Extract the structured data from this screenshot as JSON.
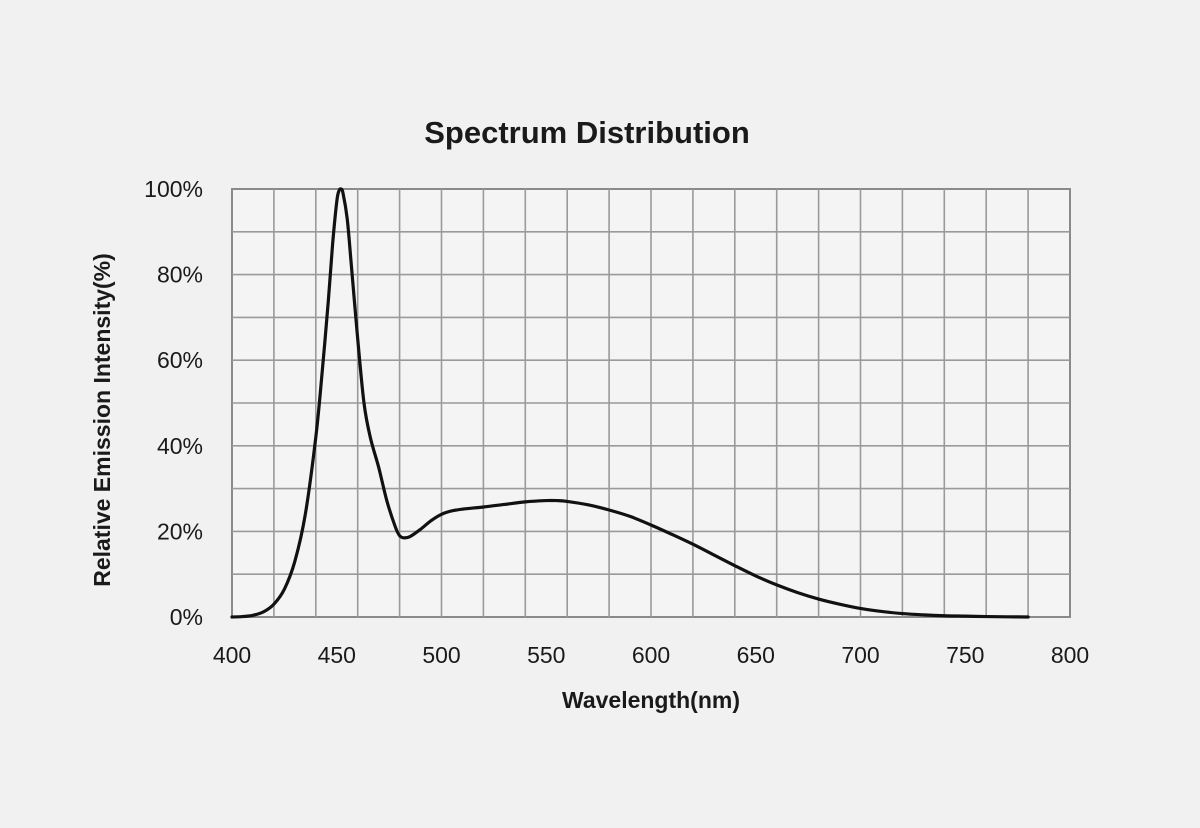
{
  "chart_data": {
    "type": "line",
    "title": "Spectrum Distribution",
    "xlabel": "Wavelength(nm)",
    "ylabel": "Relative Emission Intensity(%)",
    "xlim": [
      400,
      800
    ],
    "ylim": [
      0,
      100
    ],
    "x_ticks": [
      400,
      450,
      500,
      550,
      600,
      650,
      700,
      750,
      800
    ],
    "x_tick_labels": [
      "400",
      "450",
      "500",
      "550",
      "600",
      "650",
      "700",
      "750",
      "800"
    ],
    "y_ticks": [
      0,
      20,
      40,
      60,
      80,
      100
    ],
    "y_tick_labels": [
      "0%",
      "20%",
      "40%",
      "60%",
      "80%",
      "100%"
    ],
    "grid": true,
    "legend": "none",
    "line_color": "#111111",
    "series": [
      {
        "x": [
          400,
          405,
          410,
          415,
          420,
          425,
          430,
          435,
          440,
          443,
          446,
          448,
          450,
          451,
          452,
          453,
          455,
          457,
          460,
          463,
          466,
          470,
          474,
          478,
          480,
          482,
          485,
          490,
          495,
          500,
          505,
          510,
          520,
          530,
          540,
          550,
          555,
          560,
          570,
          580,
          590,
          600,
          610,
          620,
          630,
          640,
          650,
          660,
          670,
          680,
          690,
          700,
          710,
          720,
          730,
          740,
          750,
          760,
          770,
          780
        ],
        "y": [
          0,
          0.1,
          0.4,
          1.2,
          3,
          6.5,
          13,
          24,
          42,
          57,
          74,
          87,
          97,
          99.5,
          100,
          99,
          93,
          82,
          65,
          50,
          42,
          35,
          27,
          21,
          19,
          18.5,
          18.8,
          20.5,
          22.5,
          24,
          24.8,
          25.2,
          25.7,
          26.3,
          26.9,
          27.2,
          27.2,
          27,
          26.2,
          25,
          23.5,
          21.5,
          19.3,
          17,
          14.5,
          12,
          9.6,
          7.5,
          5.7,
          4.2,
          3,
          2,
          1.3,
          0.8,
          0.5,
          0.3,
          0.2,
          0.1,
          0.05,
          0
        ]
      }
    ]
  }
}
